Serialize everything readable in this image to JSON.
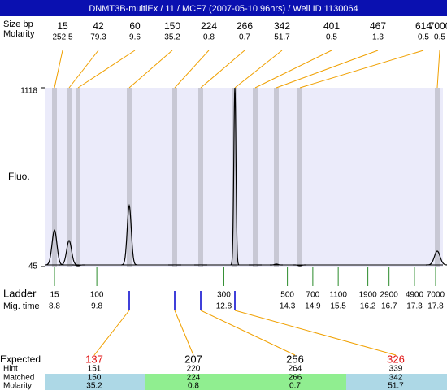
{
  "title": "DNMT3B-multiEx / 11 / MCF7 (2007-05-10 96hrs) / Well ID 1130064",
  "row_labels": {
    "size": "Size bp",
    "molarity": "Molarity",
    "fluo": "Fluo.",
    "ladder": "Ladder",
    "mig_time": "Mig. time",
    "expected": "Expected",
    "hint": "Hint",
    "matched": "Matched",
    "molarity_bottom": "Molarity"
  },
  "chart_data": {
    "type": "electropherogram",
    "ylim": [
      45,
      1118
    ],
    "yticks": [
      45,
      1118
    ],
    "peaks": {
      "sizes": [
        15,
        42,
        60,
        150,
        224,
        266,
        342,
        401,
        467,
        614,
        7000
      ],
      "molarity": [
        252.5,
        79.3,
        9.6,
        35.2,
        0.8,
        0.7,
        51.7,
        0.5,
        1.3,
        0.5,
        0.5
      ],
      "heights": [
        264,
        201,
        50,
        411,
        55,
        55,
        1118,
        55,
        60,
        50,
        138
      ]
    },
    "ladder": {
      "sizes": [
        15,
        100,
        300,
        500,
        700,
        1100,
        1900,
        2900,
        4900,
        7000
      ],
      "mig_time": [
        8.8,
        9.8,
        12.8,
        14.3,
        14.9,
        15.5,
        16.2,
        16.7,
        17.3,
        17.8
      ]
    },
    "matches": {
      "expected": [
        137,
        207,
        256,
        326
      ],
      "expected_colors": [
        "#e01010",
        "#000000",
        "#000000",
        "#e01010"
      ],
      "hint": [
        151,
        220,
        264,
        339
      ],
      "matched": [
        150,
        224,
        266,
        342
      ],
      "molarity": [
        35.2,
        0.8,
        0.7,
        51.7
      ]
    }
  }
}
